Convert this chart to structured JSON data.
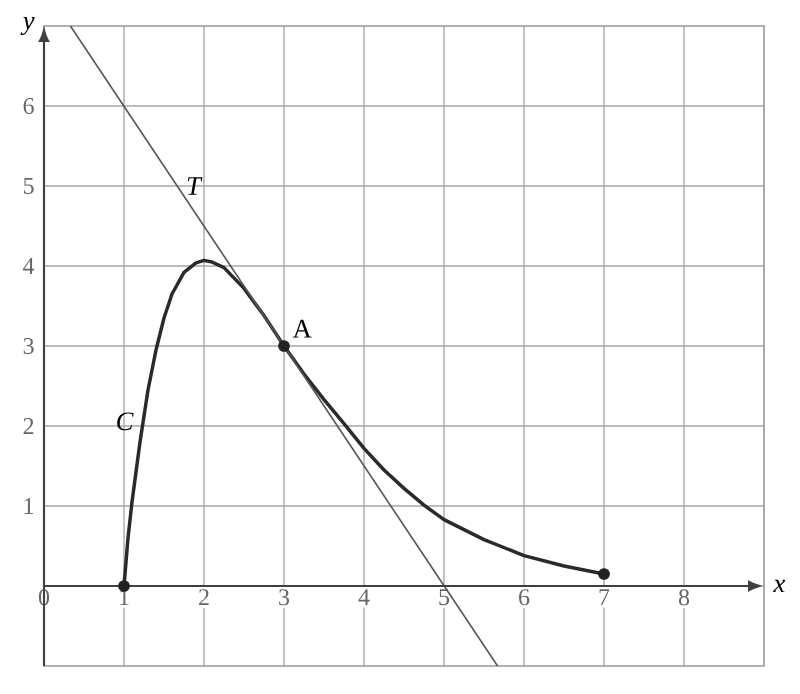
{
  "chart_data": {
    "type": "line",
    "xlabel": "x",
    "ylabel": "y",
    "xlim": [
      0,
      9
    ],
    "ylim": [
      -1,
      7
    ],
    "xticks": [
      0,
      1,
      2,
      3,
      4,
      5,
      6,
      7,
      8
    ],
    "yticks": [
      1,
      2,
      3,
      4,
      5,
      6
    ],
    "grid": true,
    "series": [
      {
        "name": "C",
        "color": "#2a2a2a",
        "x": [
          1,
          1.05,
          1.1,
          1.2,
          1.3,
          1.4,
          1.5,
          1.6,
          1.75,
          1.9,
          2,
          2.1,
          2.25,
          2.5,
          2.75,
          3,
          3.25,
          3.5,
          3.75,
          4,
          4.25,
          4.5,
          4.75,
          5,
          5.5,
          6,
          6.5,
          7
        ],
        "values": [
          0,
          0.6,
          1.05,
          1.8,
          2.45,
          2.95,
          3.35,
          3.65,
          3.92,
          4.04,
          4.07,
          4.05,
          3.98,
          3.72,
          3.38,
          3.0,
          2.65,
          2.33,
          2.03,
          1.72,
          1.45,
          1.22,
          1.01,
          0.83,
          0.58,
          0.38,
          0.25,
          0.15
        ]
      },
      {
        "name": "T",
        "type": "line",
        "color": "#555555",
        "x": [
          0.33,
          5.67
        ],
        "values": [
          7,
          -1
        ]
      },
      {
        "type": "scatter",
        "color": "#222222",
        "x": [
          1,
          3,
          7
        ],
        "values": [
          0,
          3,
          0.15
        ]
      }
    ],
    "annotations": [
      {
        "text": "A",
        "x": 3,
        "y": 3
      }
    ]
  }
}
